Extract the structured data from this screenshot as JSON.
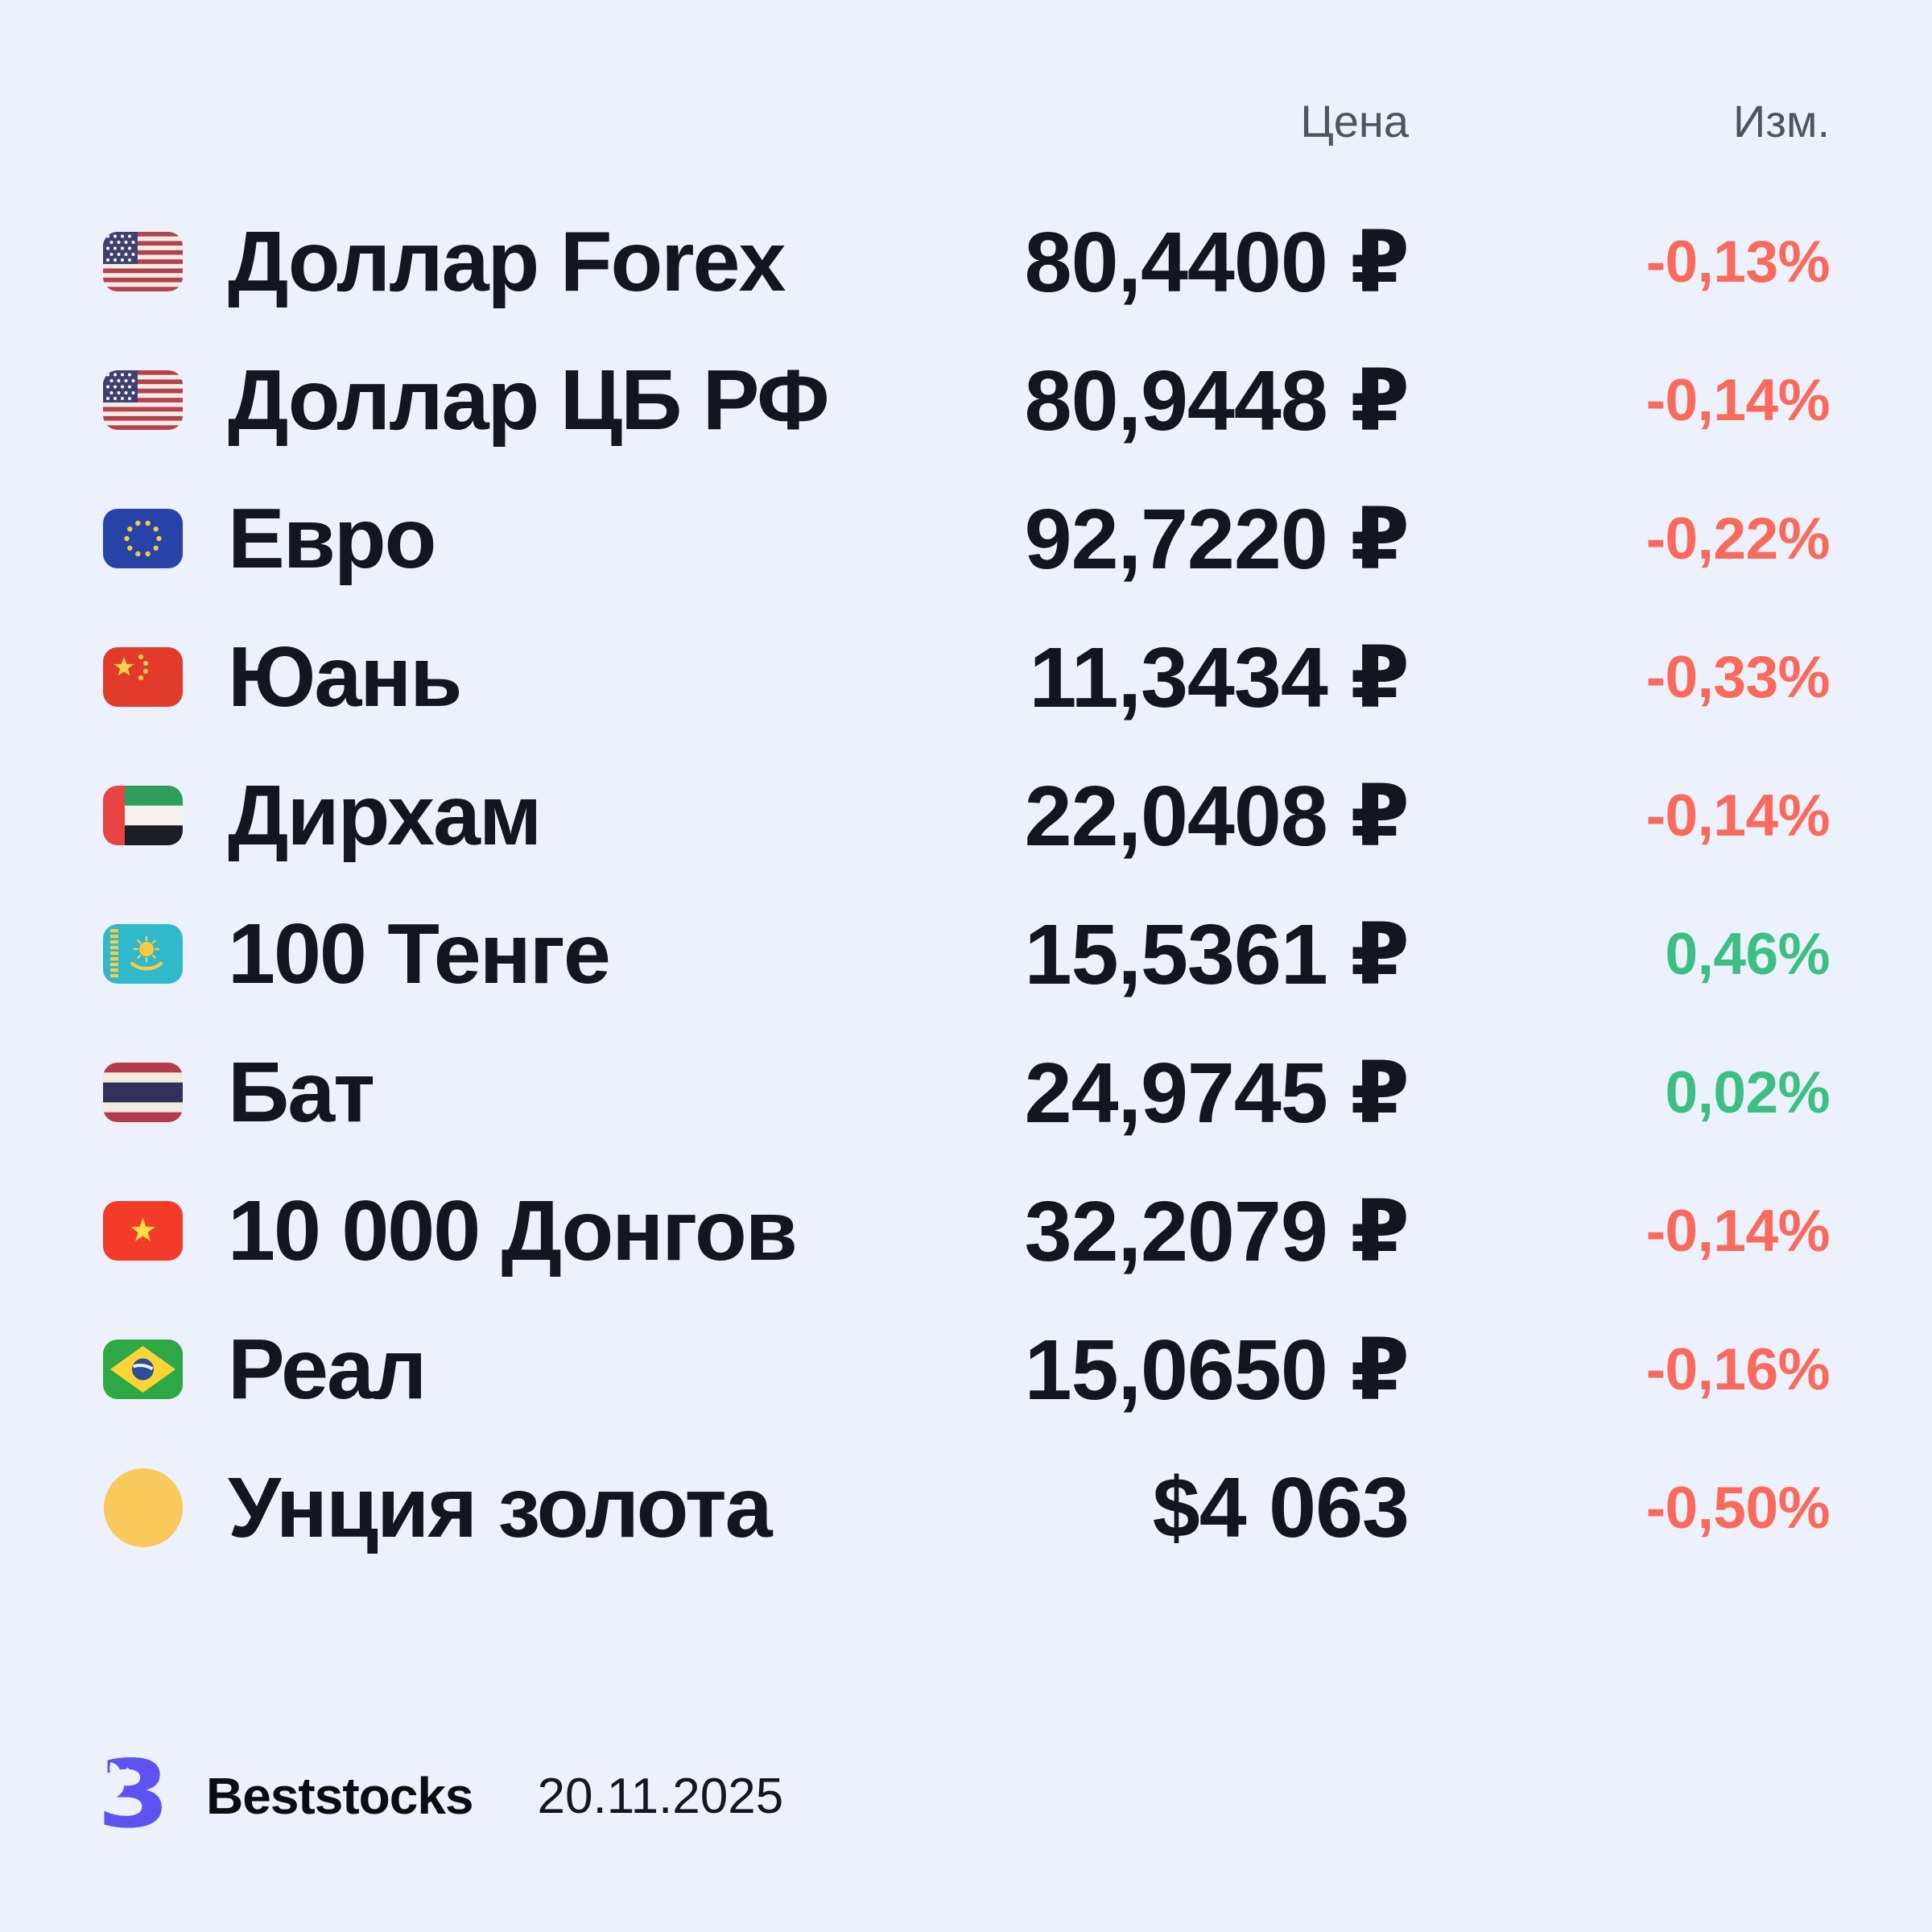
{
  "colors": {
    "background": "#EDF1FB",
    "text_dark": "#13151F",
    "header_gray": "#50545F",
    "negative_red": "#F9695C",
    "positive_green": "#3CBF85",
    "gold": "#F9C95C",
    "brand_purple": "#5C53F1"
  },
  "table": {
    "price_header": "Цена",
    "change_header": "Изм.",
    "rows": [
      {
        "label": "Доллар Forex",
        "flag": "us",
        "icon": "flag-us-icon",
        "price": "80,4400 ₽",
        "change": "-0,13%",
        "direction": "down"
      },
      {
        "label": "Доллар ЦБ РФ",
        "flag": "us",
        "icon": "flag-us-icon",
        "price": "80,9448 ₽",
        "change": "-0,14%",
        "direction": "down"
      },
      {
        "label": "Евро",
        "flag": "eu",
        "icon": "flag-eu-icon",
        "price": "92,7220 ₽",
        "change": "-0,22%",
        "direction": "down"
      },
      {
        "label": "Юань",
        "flag": "cn",
        "icon": "flag-china-icon",
        "price": "11,3434 ₽",
        "change": "-0,33%",
        "direction": "down"
      },
      {
        "label": "Дирхам",
        "flag": "ae",
        "icon": "flag-uae-icon",
        "price": "22,0408 ₽",
        "change": "-0,14%",
        "direction": "down"
      },
      {
        "label": "100 Тенге",
        "flag": "kz",
        "icon": "flag-kazakhstan-icon",
        "price": "15,5361 ₽",
        "change": "0,46%",
        "direction": "up"
      },
      {
        "label": "Бат",
        "flag": "th",
        "icon": "flag-thailand-icon",
        "price": "24,9745 ₽",
        "change": "0,02%",
        "direction": "up"
      },
      {
        "label": "10 000 Донгов",
        "flag": "vn",
        "icon": "flag-vietnam-icon",
        "price": "32,2079 ₽",
        "change": "-0,14%",
        "direction": "down"
      },
      {
        "label": "Реал",
        "flag": "br",
        "icon": "flag-brazil-icon",
        "price": "15,0650 ₽",
        "change": "-0,16%",
        "direction": "down"
      },
      {
        "label": "Унция золота",
        "flag": "gold",
        "icon": "gold-ounce-icon",
        "price": "$4 063",
        "change": "-0,50%",
        "direction": "down"
      }
    ]
  },
  "chart_data": {
    "type": "table",
    "title": "",
    "columns": [
      "",
      "Цена",
      "Изм."
    ],
    "rows": [
      [
        "Доллар Forex",
        "80,4400 ₽",
        "-0,13%"
      ],
      [
        "Доллар ЦБ РФ",
        "80,9448 ₽",
        "-0,14%"
      ],
      [
        "Евро",
        "92,7220 ₽",
        "-0,22%"
      ],
      [
        "Юань",
        "11,3434 ₽",
        "-0,33%"
      ],
      [
        "Дирхам",
        "22,0408 ₽",
        "-0,14%"
      ],
      [
        "100 Тенге",
        "15,5361 ₽",
        "0,46%"
      ],
      [
        "Бат",
        "24,9745 ₽",
        "0,02%"
      ],
      [
        "10 000 Донгов",
        "32,2079 ₽",
        "-0,14%"
      ],
      [
        "Реал",
        "15,0650 ₽",
        "-0,16%"
      ],
      [
        "Унция золота",
        "$4 063",
        "-0,50%"
      ]
    ],
    "price_values": [
      80.44,
      80.9448,
      92.722,
      11.3434,
      22.0408,
      15.5361,
      24.9745,
      32.2079,
      15.065,
      4063
    ],
    "change_percent_values": [
      -0.13,
      -0.14,
      -0.22,
      -0.33,
      -0.14,
      0.46,
      0.02,
      -0.14,
      -0.16,
      -0.5
    ]
  },
  "footer": {
    "brand": "Beststocks",
    "date": "20.11.2025",
    "logo": "beststocks-bull-logo"
  }
}
